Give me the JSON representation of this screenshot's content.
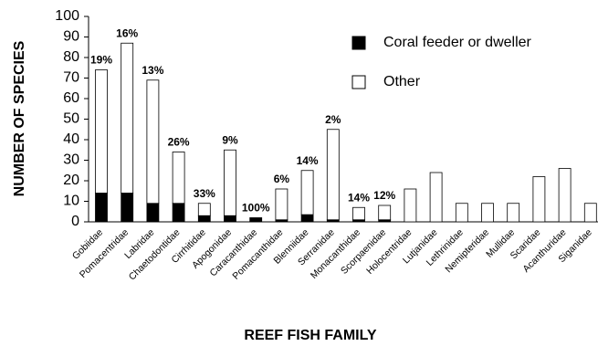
{
  "chart_data": {
    "type": "stacked_bar",
    "y_label": "NUMBER OF SPECIES",
    "x_label": "REEF FISH FAMILY",
    "categories": [
      "Gobiidae",
      "Pomacentridae",
      "Labridae",
      "Chaetodontidae",
      "Cirrhitidae",
      "Apogonidae",
      "Caracanthidae",
      "Pomacanthidae",
      "Blenniidae",
      "Serranidae",
      "Monacanthidae",
      "Scorpaenidae",
      "Holocentridae",
      "Lutjanidae",
      "Lethrinidae",
      "Nemipteridae",
      "Mullidae",
      "Scaridae",
      "Acanthuridae",
      "Siganidae"
    ],
    "series": [
      {
        "name": "Coral feeder or dweller",
        "color": "#000000",
        "values": [
          14,
          14,
          9,
          9,
          3,
          3,
          2,
          1,
          3.5,
          1,
          1,
          1,
          0,
          0,
          0,
          0,
          0,
          0,
          0,
          0
        ]
      },
      {
        "name": "Other",
        "color": "#ffffff",
        "values": [
          60,
          73,
          60,
          25,
          6,
          32,
          0,
          15,
          21.5,
          44,
          6,
          7,
          16,
          24,
          9,
          9,
          9,
          22,
          26,
          9
        ]
      }
    ],
    "annotations": [
      "19%",
      "16%",
      "13%",
      "26%",
      "33%",
      "9%",
      "100%",
      "6%",
      "14%",
      "2%",
      "14%",
      "12%",
      null,
      null,
      null,
      null,
      null,
      null,
      null,
      null
    ],
    "ylim": [
      0,
      100
    ],
    "yticks": [
      0,
      10,
      20,
      30,
      40,
      50,
      60,
      70,
      80,
      90,
      100
    ],
    "legend": "top-right"
  }
}
